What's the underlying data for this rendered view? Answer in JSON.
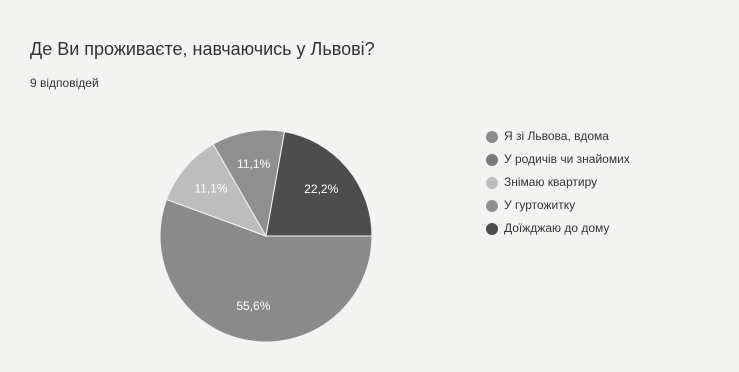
{
  "chart_data": {
    "type": "pie",
    "title": "Де Ви проживаєте, навчаючись у Львові?",
    "subtitle": "9 відповідей",
    "categories": [
      "Я зі Львова, вдома",
      "У родичів чи знайомих",
      "Знімаю квартиру",
      "У гуртожитку",
      "Доїжджаю до дому"
    ],
    "values": [
      55.6,
      0,
      11.1,
      11.1,
      22.2
    ],
    "value_labels": [
      "55,6%",
      null,
      "11,1%",
      "11,1%",
      "22,2%"
    ],
    "colors": [
      "#8a8a8a",
      "#7b7b7b",
      "#bdbdbd",
      "#8f8f8f",
      "#4d4d4d"
    ],
    "legend": "right"
  }
}
